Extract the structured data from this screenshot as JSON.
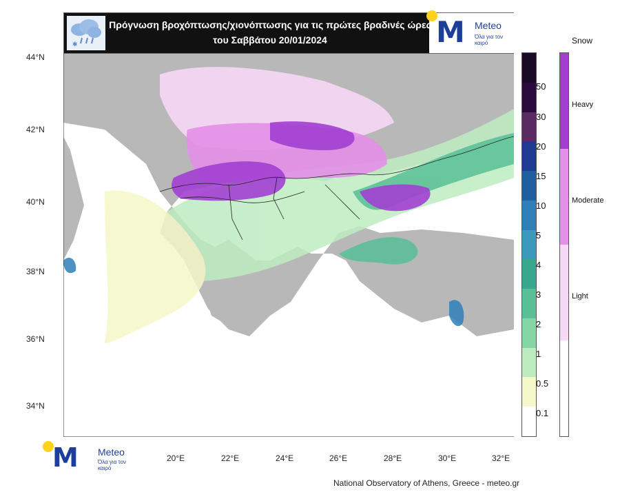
{
  "header": {
    "title": "Πρόγνωση βροχόπτωσης/χιονόπτωσης για τις πρώτες βραδινές ώρες του Σαββάτου 20/01/2024",
    "logo_name": "Meteo",
    "logo_tagline": "Όλα για τον καιρό",
    "weather_icon": "rain-snow-cloud-icon"
  },
  "axes": {
    "lat_labels": [
      "44°N",
      "42°N",
      "40°N",
      "38°N",
      "36°N",
      "34°N"
    ],
    "lon_labels": [
      "20°E",
      "22°E",
      "24°E",
      "26°E",
      "28°E",
      "30°E",
      "32°E"
    ]
  },
  "precip_scale": {
    "labels": [
      "50",
      "30",
      "20",
      "15",
      "10",
      "5",
      "4",
      "3",
      "2",
      "1",
      "0.5",
      "0.1"
    ],
    "colors": [
      "#2b0a3d",
      "#5a2a63",
      "#1f3a93",
      "#1f5fa0",
      "#2f7fb8",
      "#3c9bbd",
      "#37a88e",
      "#58bf96",
      "#86d6a6",
      "#bdecc1",
      "#f5f8c8",
      "#ffffff"
    ]
  },
  "snow_scale": {
    "title": "Snow",
    "levels": [
      "Heavy",
      "Moderate",
      "Light"
    ],
    "colors": [
      "#a23fd1",
      "#e48fe8",
      "#f7d8f6"
    ]
  },
  "legend_colors": {
    "land": "#b8b8b8",
    "sea": "#ffffff"
  },
  "footer": {
    "logo_name": "Meteo",
    "logo_tagline": "Όλα για τον καιρό",
    "credit": "National Observatory of Athens, Greece - meteo.gr"
  }
}
